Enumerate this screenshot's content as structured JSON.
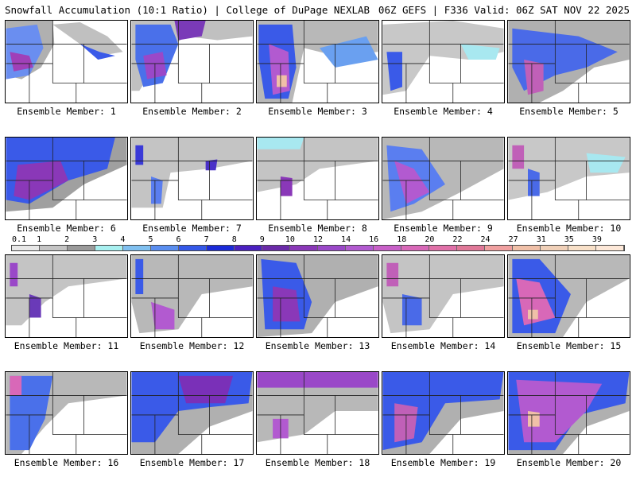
{
  "header": {
    "title": "Snowfall Accumulation (10:1 Ratio) | College of DuPage NEXLAB",
    "run_info": "06Z GEFS | F336 Valid: 06Z SAT NOV 22 2025"
  },
  "colorbar": {
    "labels": [
      "0.1",
      "1",
      "2",
      "3",
      "4",
      "5",
      "6",
      "7",
      "8",
      "9",
      "10",
      "12",
      "14",
      "16",
      "18",
      "20",
      "22",
      "24",
      "27",
      "31",
      "35",
      "39"
    ],
    "colors": [
      "#e8e8e8",
      "#c4c4c4",
      "#9a9a9a",
      "#a8f0f0",
      "#80c0f0",
      "#5a8ef0",
      "#3458e8",
      "#1a2ad8",
      "#4a20c0",
      "#6a2aa8",
      "#8a38b8",
      "#9a48c8",
      "#b25ad0",
      "#c860c8",
      "#d868b8",
      "#e070a8",
      "#e07898",
      "#f0a0a0",
      "#f0c0a8",
      "#f0d0b8",
      "#f8e0c8",
      "#fde8d8"
    ]
  },
  "panels": [
    {
      "label": "Ensemble Member: 1"
    },
    {
      "label": "Ensemble Member: 2"
    },
    {
      "label": "Ensemble Member: 3"
    },
    {
      "label": "Ensemble Member: 4"
    },
    {
      "label": "Ensemble Member: 5"
    },
    {
      "label": "Ensemble Member: 6"
    },
    {
      "label": "Ensemble Member: 7"
    },
    {
      "label": "Ensemble Member: 8"
    },
    {
      "label": "Ensemble Member: 9"
    },
    {
      "label": "Ensemble Member: 10"
    },
    {
      "label": "Ensemble Member: 11"
    },
    {
      "label": "Ensemble Member: 12"
    },
    {
      "label": "Ensemble Member: 13"
    },
    {
      "label": "Ensemble Member: 14"
    },
    {
      "label": "Ensemble Member: 15"
    },
    {
      "label": "Ensemble Member: 16"
    },
    {
      "label": "Ensemble Member: 17"
    },
    {
      "label": "Ensemble Member: 18"
    },
    {
      "label": "Ensemble Member: 19"
    },
    {
      "label": "Ensemble Member: 20"
    }
  ]
}
